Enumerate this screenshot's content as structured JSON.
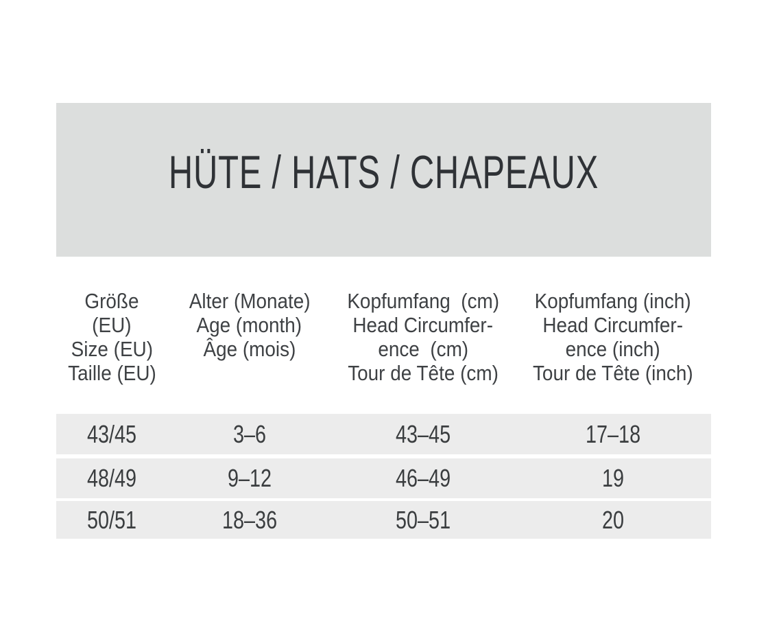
{
  "page": {
    "title": "HÜTE / HATS / CHAPEAUX"
  },
  "size_table": {
    "columns": [
      {
        "id": "size-eu",
        "lines": [
          "Größe",
          "(EU)",
          "Size (EU)",
          "Taille (EU)"
        ]
      },
      {
        "id": "age",
        "lines": [
          "Alter (Monate)",
          "Age (month)",
          "Âge (mois)"
        ]
      },
      {
        "id": "head-cm",
        "lines": [
          "Kopfumfang  (cm)",
          "Head Circumfer-",
          "ence  (cm)",
          "Tour de Tête (cm)"
        ]
      },
      {
        "id": "head-inch",
        "lines": [
          "Kopfumfang (inch)",
          "Head Circumfer-",
          "ence (inch)",
          "Tour de Tête (inch)"
        ]
      }
    ],
    "rows": [
      [
        "43/45",
        "3–6",
        "43–45",
        "17–18"
      ],
      [
        "48/49",
        "9–12",
        "46–49",
        "19"
      ],
      [
        "50/51",
        "18–36",
        "50–51",
        "20"
      ]
    ]
  },
  "colors": {
    "page_bg": "#ffffff",
    "banner_bg": "#dcdedd",
    "row_bg": "#ececec",
    "title_text": "#2f3236",
    "body_text": "#3e4144"
  }
}
